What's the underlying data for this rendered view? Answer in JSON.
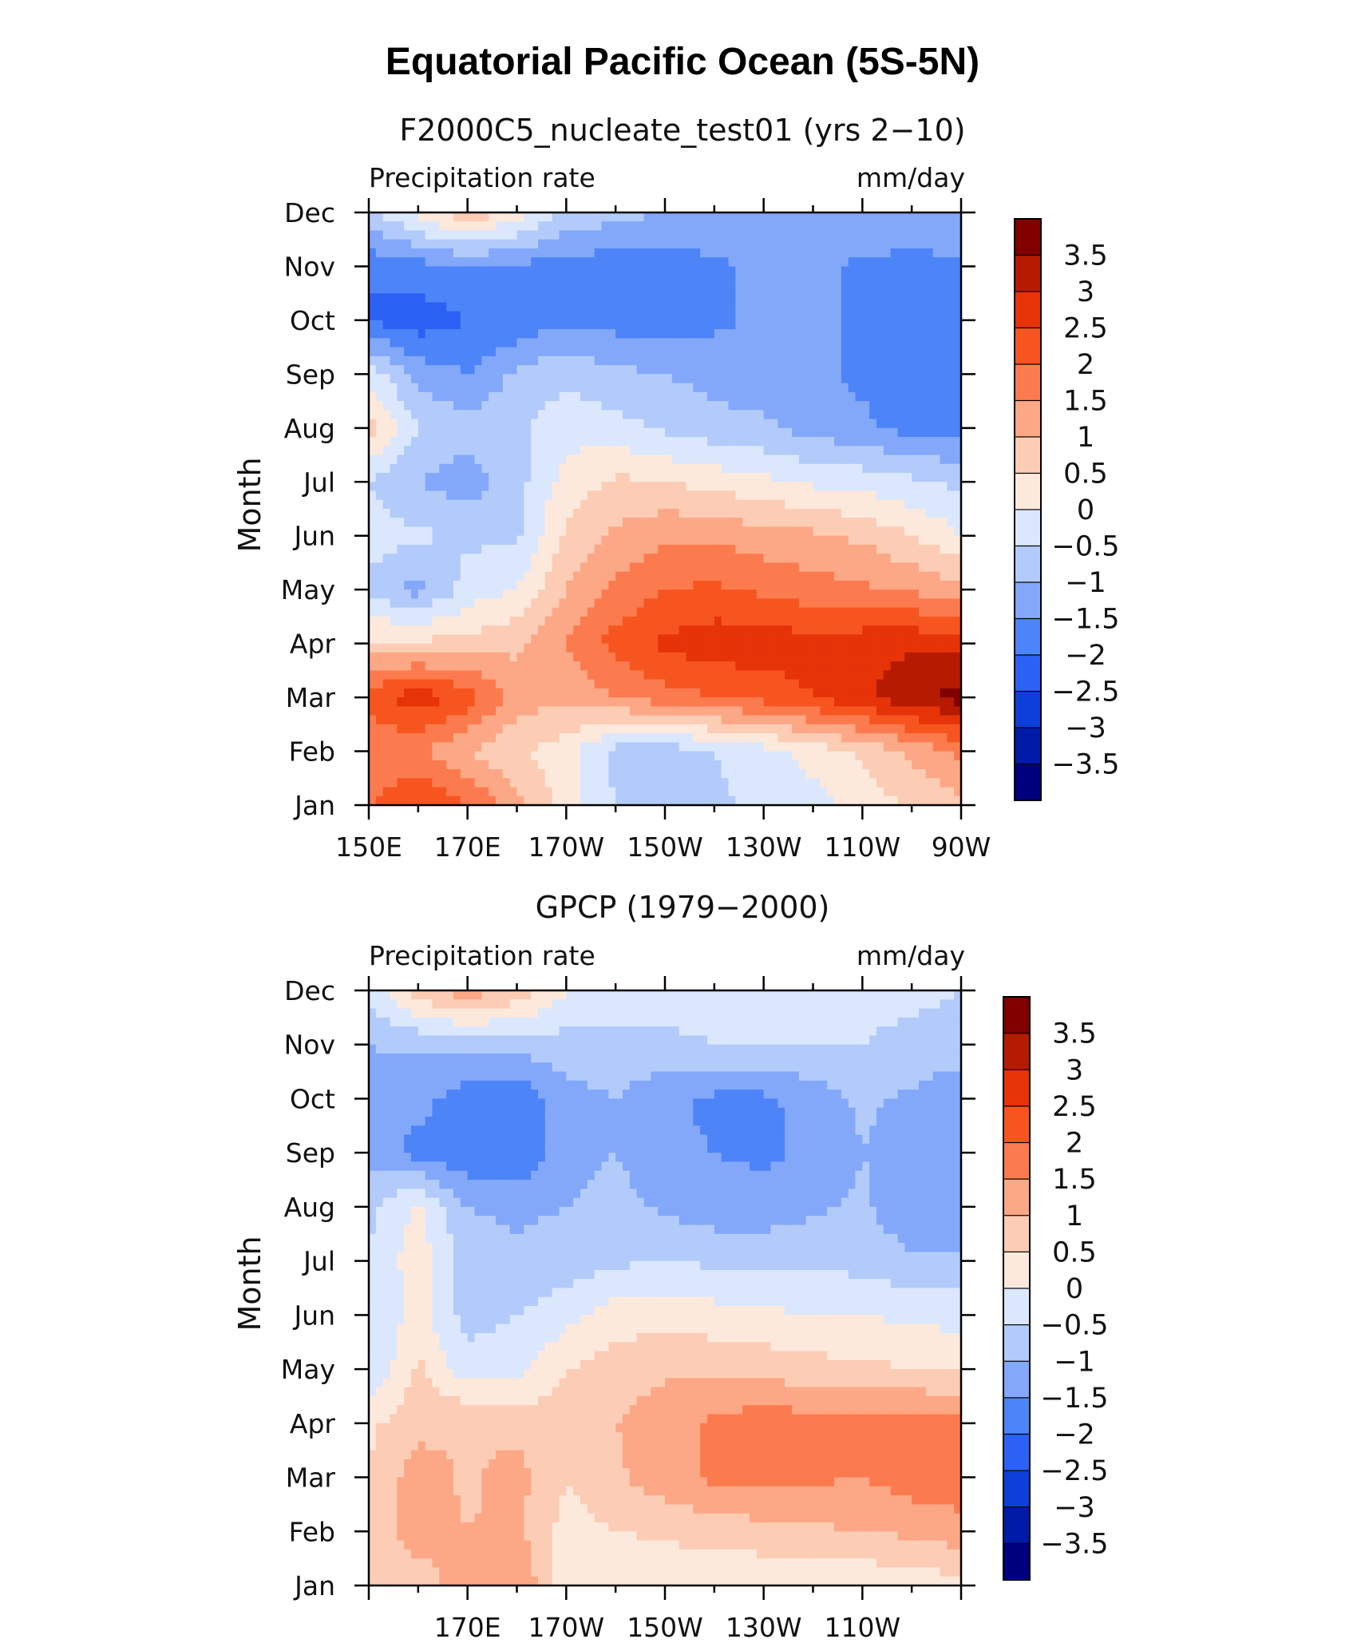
{
  "figure_title": "Equatorial Pacific Ocean (5S-5N)",
  "chart_data": [
    {
      "type": "heatmap",
      "title": "F2000C5_nucleate_test01 (yrs 2-10)",
      "title_display": "F2000C5_nucleate_test01 (yrs 2−10)",
      "left_label": "Precipitation rate",
      "right_label": "mm/day",
      "ylabel": "Month",
      "xlabel": "",
      "x_ticks": [
        "150E",
        "170E",
        "170W",
        "150W",
        "130W",
        "110W",
        "90W"
      ],
      "x_tick_lon": [
        150,
        170,
        190,
        210,
        230,
        250,
        270
      ],
      "x_range": [
        150,
        270
      ],
      "y_ticks": [
        "Jan",
        "Feb",
        "Mar",
        "Apr",
        "May",
        "Jun",
        "Jul",
        "Aug",
        "Sep",
        "Oct",
        "Nov",
        "Dec"
      ],
      "x_lon": [
        150,
        160,
        170,
        180,
        190,
        200,
        210,
        220,
        230,
        240,
        250,
        260,
        270
      ],
      "values": [
        [
          2.0,
          2.5,
          2.0,
          1.2,
          0.2,
          -0.5,
          -0.8,
          -0.6,
          -0.4,
          -0.2,
          0.2,
          0.6,
          0.9
        ],
        [
          1.5,
          1.6,
          1.0,
          0.6,
          0.2,
          -0.7,
          -0.8,
          -0.5,
          -0.2,
          0.2,
          0.6,
          1.1,
          1.6
        ],
        [
          2.3,
          2.8,
          2.3,
          1.2,
          1.2,
          1.5,
          1.8,
          2.0,
          2.2,
          2.5,
          2.9,
          3.4,
          3.7
        ],
        [
          0.6,
          0.6,
          0.7,
          0.9,
          1.5,
          2.2,
          2.6,
          2.8,
          2.8,
          2.7,
          2.8,
          2.9,
          2.8
        ],
        [
          -0.6,
          -1.2,
          -0.3,
          0.0,
          1.0,
          1.6,
          2.0,
          2.1,
          1.9,
          1.7,
          1.6,
          1.4,
          1.2
        ],
        [
          -0.3,
          -0.4,
          -0.6,
          -0.6,
          0.6,
          1.1,
          1.4,
          1.4,
          1.2,
          1.1,
          0.9,
          0.5,
          0.0
        ],
        [
          -0.5,
          -1.0,
          -1.3,
          -0.7,
          0.2,
          0.6,
          0.5,
          0.3,
          0.1,
          -0.1,
          -0.2,
          -0.4,
          -0.6
        ],
        [
          0.7,
          -0.5,
          -0.8,
          -0.6,
          -0.2,
          -0.3,
          -0.6,
          -0.8,
          -0.9,
          -1.2,
          -1.4,
          -1.7,
          -1.7
        ],
        [
          -0.2,
          -1.2,
          -1.5,
          -0.9,
          -0.6,
          -0.9,
          -1.0,
          -1.2,
          -1.3,
          -1.4,
          -1.6,
          -1.7,
          -1.8
        ],
        [
          -2.1,
          -2.3,
          -2.0,
          -1.9,
          -1.6,
          -1.7,
          -1.7,
          -1.6,
          -1.4,
          -1.4,
          -1.6,
          -1.8,
          -1.8
        ],
        [
          -1.9,
          -1.7,
          -1.5,
          -1.6,
          -1.7,
          -1.8,
          -1.8,
          -1.6,
          -1.4,
          -1.4,
          -1.6,
          -1.7,
          -1.6
        ],
        [
          -0.6,
          0.2,
          0.9,
          0.3,
          -0.6,
          -0.8,
          -1.0,
          -1.0,
          -1.0,
          -1.1,
          -1.1,
          -1.0,
          -1.1
        ]
      ],
      "colorbar_levels": [
        -3.5,
        -3,
        -2.5,
        -2,
        -1.5,
        -1,
        -0.5,
        0,
        0.5,
        1,
        1.5,
        2,
        2.5,
        3,
        3.5
      ],
      "colorbar_labels": [
        "3.5",
        "3",
        "2.5",
        "2",
        "1.5",
        "1",
        "0.5",
        "0",
        "−0.5",
        "−1",
        "−1.5",
        "−2",
        "−2.5",
        "−3",
        "−3.5"
      ]
    },
    {
      "type": "heatmap",
      "title": "GPCP (1979-2000)",
      "title_display": "GPCP (1979−2000)",
      "left_label": "Precipitation rate",
      "right_label": "mm/day",
      "ylabel": "Month",
      "xlabel": "",
      "x_ticks": [
        "170E",
        "170W",
        "150W",
        "130W",
        "110W"
      ],
      "x_tick_lon": [
        170,
        190,
        210,
        230,
        250
      ],
      "x_range": [
        150,
        270
      ],
      "y_ticks": [
        "Jan",
        "Feb",
        "Mar",
        "Apr",
        "May",
        "Jun",
        "Jul",
        "Aug",
        "Sep",
        "Oct",
        "Nov",
        "Dec"
      ],
      "x_lon": [
        150,
        160,
        170,
        180,
        190,
        200,
        210,
        220,
        230,
        240,
        250,
        260,
        270
      ],
      "values": [
        [
          0.9,
          0.8,
          1.2,
          1.5,
          0.2,
          0.1,
          0.1,
          0.1,
          0.1,
          0.1,
          0.1,
          0.2,
          0.3
        ],
        [
          0.7,
          1.2,
          1.0,
          1.1,
          0.3,
          0.5,
          0.6,
          0.7,
          0.8,
          0.9,
          1.0,
          1.1,
          1.3
        ],
        [
          0.5,
          1.3,
          0.9,
          1.2,
          0.5,
          0.9,
          1.3,
          1.6,
          1.7,
          1.6,
          1.5,
          1.8,
          1.8
        ],
        [
          0.4,
          0.8,
          1.0,
          0.8,
          0.8,
          1.0,
          1.3,
          1.6,
          1.8,
          1.7,
          1.7,
          1.8,
          1.6
        ],
        [
          -0.5,
          0.6,
          -0.3,
          -0.2,
          0.5,
          0.7,
          0.9,
          0.9,
          0.8,
          0.7,
          0.6,
          0.5,
          0.4
        ],
        [
          -0.5,
          0.2,
          -0.7,
          -0.5,
          -0.2,
          0.3,
          0.3,
          0.2,
          0.1,
          0.0,
          0.0,
          -0.1,
          -0.2
        ],
        [
          -0.5,
          0.3,
          -0.8,
          -0.9,
          -0.8,
          -0.6,
          -0.5,
          -0.6,
          -0.6,
          -0.6,
          -0.7,
          -0.9,
          -0.9
        ],
        [
          -0.6,
          0.1,
          -1.0,
          -1.1,
          -1.0,
          -0.8,
          -1.1,
          -1.3,
          -1.3,
          -1.1,
          -0.9,
          -1.4,
          -1.3
        ],
        [
          -1.2,
          -1.7,
          -1.9,
          -2.0,
          -1.2,
          -1.0,
          -1.4,
          -1.5,
          -1.6,
          -1.4,
          -1.0,
          -1.3,
          -1.4
        ],
        [
          -1.2,
          -1.3,
          -1.8,
          -1.9,
          -1.2,
          -1.0,
          -1.4,
          -1.6,
          -1.6,
          -1.3,
          -0.9,
          -1.1,
          -1.4
        ],
        [
          -1.0,
          -0.9,
          -0.8,
          -0.8,
          -0.7,
          -0.6,
          -0.6,
          -0.5,
          -0.4,
          -0.5,
          -0.5,
          -0.6,
          -0.7
        ],
        [
          -0.4,
          0.8,
          1.3,
          0.9,
          0.0,
          -0.3,
          -0.3,
          -0.3,
          -0.4,
          -0.4,
          -0.4,
          -0.4,
          -0.5
        ]
      ],
      "colorbar_levels": [
        -3.5,
        -3,
        -2.5,
        -2,
        -1.5,
        -1,
        -0.5,
        0,
        0.5,
        1,
        1.5,
        2,
        2.5,
        3,
        3.5
      ],
      "colorbar_labels": [
        "3.5",
        "3",
        "2.5",
        "2",
        "1.5",
        "1",
        "0.5",
        "0",
        "−0.5",
        "−1",
        "−1.5",
        "−2",
        "−2.5",
        "−3",
        "−3.5"
      ]
    }
  ],
  "colors": {
    "palette": [
      "#00007f",
      "#001aa8",
      "#0d3fd9",
      "#2b62f5",
      "#4d84f8",
      "#83a8fa",
      "#b2cbfb",
      "#dbe7fd",
      "#fde9dc",
      "#fcccb4",
      "#fca785",
      "#fc7b4e",
      "#f75520",
      "#e63308",
      "#b51b00",
      "#800000"
    ]
  }
}
